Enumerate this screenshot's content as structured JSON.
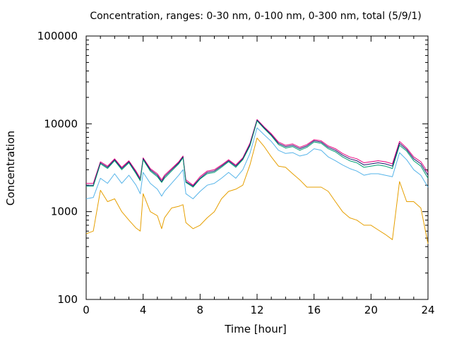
{
  "chart_data": {
    "type": "line",
    "title": "Concentration, ranges: 0-30 nm, 0-100 nm, 0-300 nm, total (5/9/1)",
    "xlabel": "Time [hour]",
    "ylabel": "Concentration",
    "xlim": [
      0,
      24
    ],
    "ylim": [
      100,
      100000
    ],
    "yscale": "log",
    "xticks": [
      0,
      4,
      8,
      12,
      16,
      20,
      24
    ],
    "xtick_labels": [
      "0",
      "4",
      "8",
      "12",
      "16",
      "20",
      "24"
    ],
    "yticks": [
      100,
      1000,
      10000,
      100000
    ],
    "ytick_labels": [
      "100",
      "1000",
      "10000",
      "100000"
    ],
    "grid": false,
    "legend": "none",
    "x": [
      0,
      0.5,
      1,
      1.5,
      2,
      2.5,
      3,
      3.5,
      3.8,
      4,
      4.5,
      5,
      5.3,
      5.5,
      6,
      6.5,
      6.8,
      7,
      7.5,
      8,
      8.5,
      9,
      9.5,
      10,
      10.5,
      11,
      11.5,
      12,
      12.5,
      13,
      13.5,
      14,
      14.5,
      15,
      15.5,
      16,
      16.5,
      17,
      17.5,
      18,
      18.5,
      19,
      19.5,
      20,
      20.5,
      21,
      21.5,
      22,
      22.5,
      23,
      23.5,
      24
    ],
    "series": [
      {
        "color": "#e6007e",
        "values": [
          2100,
          2100,
          3700,
          3300,
          4000,
          3200,
          3800,
          2900,
          2400,
          4100,
          3100,
          2700,
          2300,
          2600,
          3100,
          3700,
          4300,
          2300,
          2000,
          2500,
          2900,
          3000,
          3400,
          3900,
          3400,
          4100,
          6000,
          11200,
          9200,
          7700,
          6200,
          5700,
          5900,
          5400,
          5800,
          6600,
          6400,
          5600,
          5200,
          4600,
          4200,
          4000,
          3600,
          3700,
          3800,
          3700,
          3500,
          6300,
          5300,
          4200,
          3700,
          2800
        ]
      },
      {
        "color": "#1a1a6e",
        "values": [
          2000,
          2000,
          3600,
          3200,
          3900,
          3100,
          3700,
          2800,
          2300,
          4000,
          3000,
          2600,
          2200,
          2500,
          3000,
          3600,
          4200,
          2200,
          1950,
          2400,
          2800,
          2900,
          3300,
          3800,
          3300,
          4000,
          5800,
          11000,
          9000,
          7500,
          6000,
          5500,
          5700,
          5200,
          5600,
          6400,
          6200,
          5400,
          5000,
          4400,
          4000,
          3800,
          3400,
          3500,
          3600,
          3500,
          3300,
          6000,
          5100,
          4000,
          3500,
          2600
        ]
      },
      {
        "color": "#009e73",
        "values": [
          1950,
          1950,
          3500,
          3100,
          3800,
          3000,
          3600,
          2700,
          2250,
          3900,
          2900,
          2500,
          2150,
          2400,
          2900,
          3500,
          4100,
          2150,
          1900,
          2350,
          2700,
          2800,
          3200,
          3700,
          3200,
          3900,
          5600,
          10800,
          8800,
          7300,
          5800,
          5300,
          5500,
          5000,
          5400,
          6200,
          6000,
          5200,
          4800,
          4200,
          3800,
          3600,
          3200,
          3300,
          3400,
          3300,
          3100,
          5700,
          4900,
          3800,
          3300,
          2400
        ]
      },
      {
        "color": "#56b4e9",
        "values": [
          1400,
          1450,
          2400,
          2100,
          2700,
          2100,
          2600,
          2000,
          1600,
          2800,
          2100,
          1800,
          1500,
          1700,
          2100,
          2600,
          3000,
          1600,
          1400,
          1700,
          2000,
          2100,
          2400,
          2800,
          2400,
          3000,
          4600,
          9000,
          7500,
          6300,
          5000,
          4600,
          4700,
          4300,
          4500,
          5200,
          5000,
          4200,
          3800,
          3400,
          3100,
          2900,
          2600,
          2700,
          2700,
          2600,
          2500,
          4700,
          3900,
          3000,
          2600,
          1900
        ]
      },
      {
        "color": "#e69f00",
        "values": [
          560,
          600,
          1750,
          1300,
          1400,
          1000,
          800,
          650,
          600,
          1600,
          1000,
          900,
          640,
          850,
          1100,
          1150,
          1200,
          750,
          640,
          700,
          850,
          1000,
          1400,
          1700,
          1800,
          2000,
          3400,
          6900,
          5500,
          4200,
          3300,
          3200,
          2700,
          2300,
          1900,
          1900,
          1900,
          1700,
          1300,
          1000,
          850,
          800,
          700,
          700,
          620,
          550,
          480,
          2200,
          1300,
          1300,
          1100,
          430
        ]
      }
    ]
  }
}
